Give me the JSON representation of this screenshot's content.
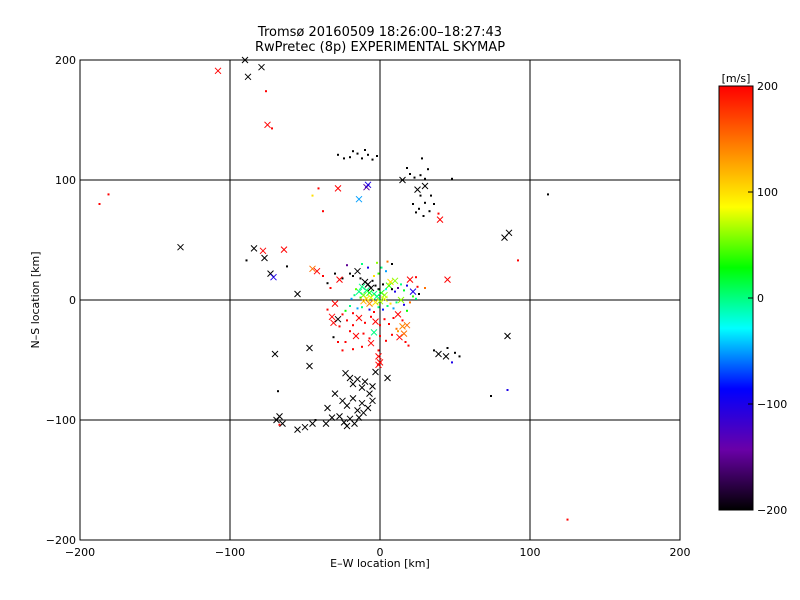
{
  "chart_data": {
    "type": "scatter",
    "title": "Tromsø 20160509 18:26:00–18:27:43",
    "subtitle": "RwPretec (8p) EXPERIMENTAL SKYMAP",
    "xlabel": "E–W location [km]",
    "ylabel": "N–S location [km]",
    "xlim": [
      -200,
      200
    ],
    "ylim": [
      -200,
      200
    ],
    "x_ticks": [
      -200,
      -100,
      0,
      100,
      200
    ],
    "y_ticks": [
      -200,
      -100,
      0,
      100,
      200
    ],
    "grid": true,
    "colorbar": {
      "label": "[m/s]",
      "min": -200,
      "max": 200,
      "ticks": [
        200,
        100,
        0,
        -100,
        -200
      ],
      "colormap": [
        "#000000",
        "#6a00a8",
        "#0000ff",
        "#00ffff",
        "#00ff00",
        "#ffff00",
        "#ff8000",
        "#ff0000"
      ]
    },
    "markers": {
      "cross": "x",
      "small": "dot"
    },
    "points": [
      [
        -108,
        191,
        200,
        "x"
      ],
      [
        -90,
        200,
        -200,
        "x"
      ],
      [
        -88,
        186,
        -200,
        "x"
      ],
      [
        -79,
        194,
        -200,
        "x"
      ],
      [
        -76,
        174,
        200,
        "d"
      ],
      [
        -75,
        146,
        200,
        "x"
      ],
      [
        -72,
        143,
        200,
        "d"
      ],
      [
        -28,
        121,
        -200,
        "d"
      ],
      [
        -20,
        119,
        -200,
        "d"
      ],
      [
        -15,
        122,
        -200,
        "d"
      ],
      [
        -12,
        118,
        -200,
        "d"
      ],
      [
        -8,
        121,
        -200,
        "d"
      ],
      [
        -5,
        117,
        -200,
        "d"
      ],
      [
        -2,
        120,
        -200,
        "d"
      ],
      [
        -18,
        124,
        -200,
        "d"
      ],
      [
        -10,
        125,
        -200,
        "d"
      ],
      [
        -24,
        118,
        -200,
        "d"
      ],
      [
        20,
        105,
        -200,
        "d"
      ],
      [
        23,
        102,
        -200,
        "d"
      ],
      [
        27,
        104,
        -200,
        "d"
      ],
      [
        30,
        101,
        -200,
        "d"
      ],
      [
        28,
        118,
        -200,
        "d"
      ],
      [
        32,
        109,
        -200,
        "d"
      ],
      [
        15,
        100,
        -200,
        "x"
      ],
      [
        18,
        110,
        -200,
        "d"
      ],
      [
        48,
        101,
        -200,
        "d"
      ],
      [
        -28,
        93,
        200,
        "x"
      ],
      [
        -9,
        94,
        -150,
        "x"
      ],
      [
        -8,
        96,
        -100,
        "x"
      ],
      [
        -14,
        84,
        -50,
        "x"
      ],
      [
        -45,
        87,
        100,
        "d"
      ],
      [
        -38,
        74,
        200,
        "d"
      ],
      [
        -41,
        93,
        200,
        "d"
      ],
      [
        25,
        92,
        -200,
        "x"
      ],
      [
        30,
        95,
        -200,
        "x"
      ],
      [
        27,
        87,
        -200,
        "d"
      ],
      [
        22,
        80,
        -200,
        "d"
      ],
      [
        26,
        76,
        -200,
        "d"
      ],
      [
        30,
        81,
        -200,
        "d"
      ],
      [
        33,
        74,
        -200,
        "d"
      ],
      [
        36,
        80,
        -200,
        "d"
      ],
      [
        29,
        70,
        -200,
        "d"
      ],
      [
        24,
        73,
        -200,
        "d"
      ],
      [
        34,
        87,
        -200,
        "d"
      ],
      [
        39,
        72,
        200,
        "d"
      ],
      [
        40,
        67,
        200,
        "x"
      ],
      [
        -187,
        80,
        200,
        "d"
      ],
      [
        -181,
        88,
        200,
        "d"
      ],
      [
        -133,
        44,
        -200,
        "x"
      ],
      [
        -84,
        43,
        -200,
        "x"
      ],
      [
        -78,
        41,
        200,
        "x"
      ],
      [
        -89,
        33,
        -200,
        "d"
      ],
      [
        -77,
        35,
        -200,
        "x"
      ],
      [
        -64,
        42,
        200,
        "x"
      ],
      [
        -73,
        22,
        -200,
        "x"
      ],
      [
        -71,
        19,
        -100,
        "x"
      ],
      [
        -62,
        28,
        -200,
        "d"
      ],
      [
        -55,
        5,
        -200,
        "x"
      ],
      [
        -45,
        26,
        150,
        "x"
      ],
      [
        -42,
        24,
        200,
        "x"
      ],
      [
        -30,
        22,
        -200,
        "d"
      ],
      [
        -20,
        22,
        -200,
        "d"
      ],
      [
        -25,
        18,
        -200,
        "d"
      ],
      [
        -27,
        17,
        200,
        "x"
      ],
      [
        -38,
        20,
        200,
        "d"
      ],
      [
        -33,
        10,
        200,
        "d"
      ],
      [
        -35,
        14,
        -200,
        "d"
      ],
      [
        -15,
        24,
        -200,
        "x"
      ],
      [
        -18,
        20,
        -200,
        "d"
      ],
      [
        -13,
        18,
        -200,
        "d"
      ],
      [
        -10,
        15,
        -200,
        "x"
      ],
      [
        -8,
        13,
        -200,
        "x"
      ],
      [
        -5,
        16,
        -200,
        "d"
      ],
      [
        -3,
        12,
        -200,
        "d"
      ],
      [
        -6,
        10,
        -200,
        "x"
      ],
      [
        -1,
        9,
        -200,
        "d"
      ],
      [
        2,
        13,
        -200,
        "d"
      ],
      [
        -12,
        11,
        0,
        "x"
      ],
      [
        -9,
        8,
        0,
        "x"
      ],
      [
        -7,
        6,
        30,
        "x"
      ],
      [
        -4,
        5,
        0,
        "x"
      ],
      [
        -11,
        4,
        50,
        "x"
      ],
      [
        -14,
        7,
        0,
        "x"
      ],
      [
        -16,
        9,
        50,
        "d"
      ],
      [
        -2,
        3,
        0,
        "x"
      ],
      [
        1,
        6,
        20,
        "x"
      ],
      [
        3,
        4,
        60,
        "x"
      ],
      [
        -6,
        2,
        80,
        "x"
      ],
      [
        -9,
        1,
        100,
        "x"
      ],
      [
        -13,
        2,
        40,
        "d"
      ],
      [
        -17,
        4,
        0,
        "d"
      ],
      [
        -19,
        1,
        -50,
        "d"
      ],
      [
        4,
        9,
        -30,
        "d"
      ],
      [
        6,
        12,
        40,
        "x"
      ],
      [
        8,
        9,
        -200,
        "d"
      ],
      [
        10,
        7,
        -100,
        "d"
      ],
      [
        12,
        10,
        -150,
        "d"
      ],
      [
        7,
        15,
        100,
        "x"
      ],
      [
        10,
        16,
        60,
        "x"
      ],
      [
        14,
        13,
        0,
        "d"
      ],
      [
        16,
        8,
        20,
        "d"
      ],
      [
        18,
        12,
        -100,
        "d"
      ],
      [
        -4,
        20,
        100,
        "d"
      ],
      [
        -1,
        22,
        40,
        "d"
      ],
      [
        1,
        27,
        0,
        "d"
      ],
      [
        4,
        24,
        -50,
        "d"
      ],
      [
        -8,
        27,
        -100,
        "d"
      ],
      [
        -2,
        31,
        60,
        "d"
      ],
      [
        -12,
        30,
        0,
        "d"
      ],
      [
        -22,
        29,
        -150,
        "d"
      ],
      [
        5,
        32,
        150,
        "d"
      ],
      [
        8,
        30,
        -200,
        "d"
      ],
      [
        -11,
        -1,
        120,
        "x"
      ],
      [
        -7,
        -3,
        140,
        "x"
      ],
      [
        -3,
        -2,
        100,
        "x"
      ],
      [
        0,
        -1,
        60,
        "x"
      ],
      [
        3,
        1,
        80,
        "x"
      ],
      [
        -20,
        -5,
        0,
        "d"
      ],
      [
        -23,
        -9,
        30,
        "d"
      ],
      [
        -18,
        -11,
        200,
        "d"
      ],
      [
        -15,
        -7,
        -50,
        "d"
      ],
      [
        -12,
        -6,
        0,
        "d"
      ],
      [
        -7,
        -8,
        -100,
        "d"
      ],
      [
        -4,
        -10,
        200,
        "d"
      ],
      [
        -1,
        -6,
        0,
        "d"
      ],
      [
        2,
        -8,
        -80,
        "d"
      ],
      [
        5,
        -5,
        0,
        "d"
      ],
      [
        7,
        -3,
        100,
        "d"
      ],
      [
        9,
        -7,
        -50,
        "d"
      ],
      [
        11,
        -2,
        0,
        "d"
      ],
      [
        14,
        0,
        60,
        "x"
      ],
      [
        16,
        -4,
        -100,
        "d"
      ],
      [
        18,
        -9,
        30,
        "d"
      ],
      [
        20,
        -2,
        150,
        "d"
      ],
      [
        22,
        3,
        40,
        "d"
      ],
      [
        20,
        17,
        200,
        "x"
      ],
      [
        24,
        19,
        200,
        "d"
      ],
      [
        25,
        11,
        200,
        "d"
      ],
      [
        22,
        7,
        -100,
        "x"
      ],
      [
        26,
        5,
        -200,
        "d"
      ],
      [
        24,
        1,
        0,
        "d"
      ],
      [
        30,
        10,
        150,
        "d"
      ],
      [
        -30,
        -3,
        200,
        "x"
      ],
      [
        -35,
        -8,
        200,
        "d"
      ],
      [
        -32,
        -14,
        200,
        "x"
      ],
      [
        -31,
        -19,
        200,
        "x"
      ],
      [
        -28,
        -16,
        -200,
        "x"
      ],
      [
        -25,
        -12,
        200,
        "d"
      ],
      [
        -27,
        -22,
        200,
        "d"
      ],
      [
        -22,
        -17,
        200,
        "d"
      ],
      [
        -18,
        -21,
        200,
        "d"
      ],
      [
        -14,
        -15,
        200,
        "x"
      ],
      [
        -10,
        -19,
        200,
        "d"
      ],
      [
        -6,
        -14,
        200,
        "d"
      ],
      [
        -3,
        -18,
        200,
        "x"
      ],
      [
        0,
        -21,
        200,
        "d"
      ],
      [
        3,
        -16,
        200,
        "d"
      ],
      [
        6,
        -20,
        200,
        "d"
      ],
      [
        9,
        -15,
        200,
        "d"
      ],
      [
        12,
        -12,
        200,
        "x"
      ],
      [
        15,
        -17,
        200,
        "d"
      ],
      [
        18,
        -21,
        150,
        "x"
      ],
      [
        -20,
        -26,
        200,
        "d"
      ],
      [
        -16,
        -30,
        200,
        "x"
      ],
      [
        -11,
        -28,
        200,
        "d"
      ],
      [
        -7,
        -32,
        200,
        "d"
      ],
      [
        -4,
        -27,
        0,
        "x"
      ],
      [
        0,
        -30,
        200,
        "d"
      ],
      [
        4,
        -34,
        200,
        "d"
      ],
      [
        8,
        -29,
        200,
        "d"
      ],
      [
        11,
        -24,
        150,
        "d"
      ],
      [
        13,
        -31,
        200,
        "x"
      ],
      [
        16,
        -28,
        150,
        "x"
      ],
      [
        15,
        -22,
        140,
        "x"
      ],
      [
        12,
        -26,
        130,
        "d"
      ],
      [
        17,
        -35,
        200,
        "d"
      ],
      [
        19,
        -38,
        200,
        "d"
      ],
      [
        -23,
        -35,
        200,
        "d"
      ],
      [
        -18,
        -41,
        200,
        "d"
      ],
      [
        -12,
        -39,
        200,
        "d"
      ],
      [
        -6,
        -36,
        200,
        "x"
      ],
      [
        -1,
        -42,
        200,
        "d"
      ],
      [
        -25,
        -42,
        200,
        "d"
      ],
      [
        -28,
        -35,
        200,
        "d"
      ],
      [
        -70,
        -45,
        -200,
        "x"
      ],
      [
        -47,
        -40,
        -200,
        "x"
      ],
      [
        -31,
        -31,
        -200,
        "d"
      ],
      [
        -47,
        -55,
        -200,
        "x"
      ],
      [
        -68,
        -76,
        -200,
        "d"
      ],
      [
        -23,
        -61,
        -200,
        "x"
      ],
      [
        -20,
        -65,
        -200,
        "x"
      ],
      [
        -18,
        -70,
        -200,
        "x"
      ],
      [
        -15,
        -66,
        -200,
        "x"
      ],
      [
        -12,
        -73,
        -200,
        "x"
      ],
      [
        -10,
        -68,
        -200,
        "x"
      ],
      [
        -7,
        -78,
        -200,
        "x"
      ],
      [
        -5,
        -72,
        -200,
        "x"
      ],
      [
        -3,
        -60,
        -200,
        "x"
      ],
      [
        -1,
        -54,
        200,
        "x"
      ],
      [
        -1,
        -47,
        200,
        "x"
      ],
      [
        0,
        -52,
        200,
        "x"
      ],
      [
        5,
        -65,
        -200,
        "x"
      ],
      [
        -30,
        -78,
        -200,
        "x"
      ],
      [
        -25,
        -84,
        -200,
        "x"
      ],
      [
        -22,
        -88,
        -200,
        "x"
      ],
      [
        -18,
        -82,
        -200,
        "x"
      ],
      [
        -15,
        -92,
        -200,
        "x"
      ],
      [
        -12,
        -86,
        -200,
        "x"
      ],
      [
        -8,
        -90,
        -200,
        "x"
      ],
      [
        -5,
        -84,
        -200,
        "x"
      ],
      [
        -27,
        -97,
        -200,
        "x"
      ],
      [
        -24,
        -102,
        -200,
        "x"
      ],
      [
        -22,
        -105,
        -200,
        "x"
      ],
      [
        -20,
        -99,
        -200,
        "x"
      ],
      [
        -17,
        -103,
        -200,
        "x"
      ],
      [
        -14,
        -98,
        -200,
        "x"
      ],
      [
        -11,
        -94,
        -200,
        "x"
      ],
      [
        -32,
        -98,
        -200,
        "x"
      ],
      [
        -35,
        -90,
        -200,
        "x"
      ],
      [
        -45,
        -103,
        -200,
        "x"
      ],
      [
        -50,
        -106,
        -200,
        "x"
      ],
      [
        -55,
        -108,
        -200,
        "x"
      ],
      [
        -65,
        -103,
        -200,
        "x"
      ],
      [
        -67,
        -97,
        -200,
        "x"
      ],
      [
        -69,
        -100,
        -200,
        "x"
      ],
      [
        -67,
        -104,
        200,
        "d"
      ],
      [
        -43,
        -100,
        -200,
        "d"
      ],
      [
        -36,
        -103,
        -200,
        "x"
      ],
      [
        36,
        -42,
        -200,
        "d"
      ],
      [
        39,
        -45,
        -200,
        "x"
      ],
      [
        44,
        -47,
        -200,
        "x"
      ],
      [
        45,
        -40,
        -200,
        "d"
      ],
      [
        50,
        -44,
        -200,
        "d"
      ],
      [
        48,
        -52,
        -100,
        "d"
      ],
      [
        53,
        -47,
        -200,
        "d"
      ],
      [
        85,
        -30,
        -200,
        "x"
      ],
      [
        85,
        -75,
        -100,
        "d"
      ],
      [
        74,
        -80,
        -200,
        "d"
      ],
      [
        83,
        52,
        -200,
        "x"
      ],
      [
        86,
        56,
        -200,
        "x"
      ],
      [
        112,
        88,
        -200,
        "d"
      ],
      [
        92,
        33,
        200,
        "d"
      ],
      [
        45,
        17,
        200,
        "x"
      ],
      [
        125,
        -183,
        200,
        "d"
      ]
    ]
  }
}
